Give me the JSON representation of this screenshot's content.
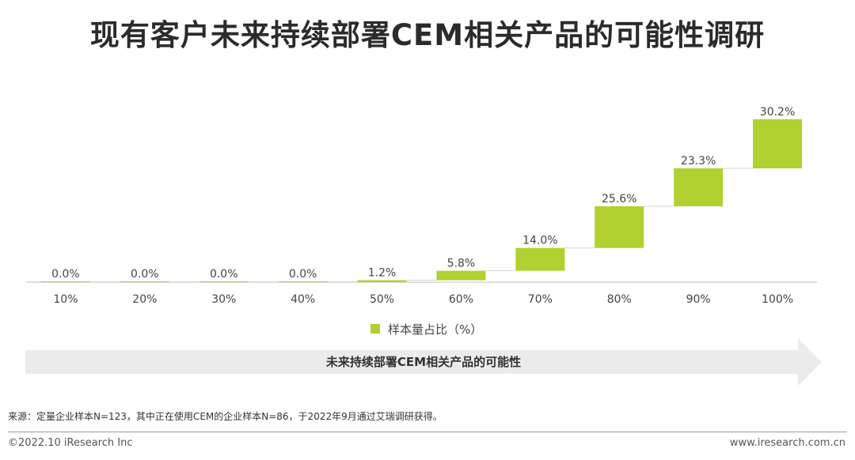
{
  "title": "现有客户未来持续部署CEM相关产品的可能性调研",
  "chart_data": {
    "type": "bar",
    "subtype": "waterfall",
    "categories": [
      "10%",
      "20%",
      "30%",
      "40%",
      "50%",
      "60%",
      "70%",
      "80%",
      "90%",
      "100%"
    ],
    "series": [
      {
        "name": "样本量占比（%）",
        "values": [
          0.0,
          0.0,
          0.0,
          0.0,
          1.2,
          5.8,
          14.0,
          25.6,
          23.3,
          30.2
        ]
      }
    ],
    "data_labels": [
      "0.0%",
      "0.0%",
      "0.0%",
      "0.0%",
      "1.2%",
      "5.8%",
      "14.0%",
      "25.6%",
      "23.3%",
      "30.2%"
    ],
    "ylim": [
      0,
      100
    ],
    "grid": false,
    "legend_position": "bottom",
    "bar_color": "#b0d12f",
    "connector_color": "#d4d4d4"
  },
  "legend": {
    "label": "样本量占比（%）",
    "color": "#b0d12f"
  },
  "banner": {
    "label": "未来持续部署CEM相关产品的可能性",
    "color": "#ebebeb"
  },
  "source": "来源：定量企业样本N=123，其中正在使用CEM的企业样本N=86，于2022年9月通过艾瑞调研获得。",
  "copyright": "©2022.10 iResearch Inc",
  "website": "www.iresearch.com.cn"
}
